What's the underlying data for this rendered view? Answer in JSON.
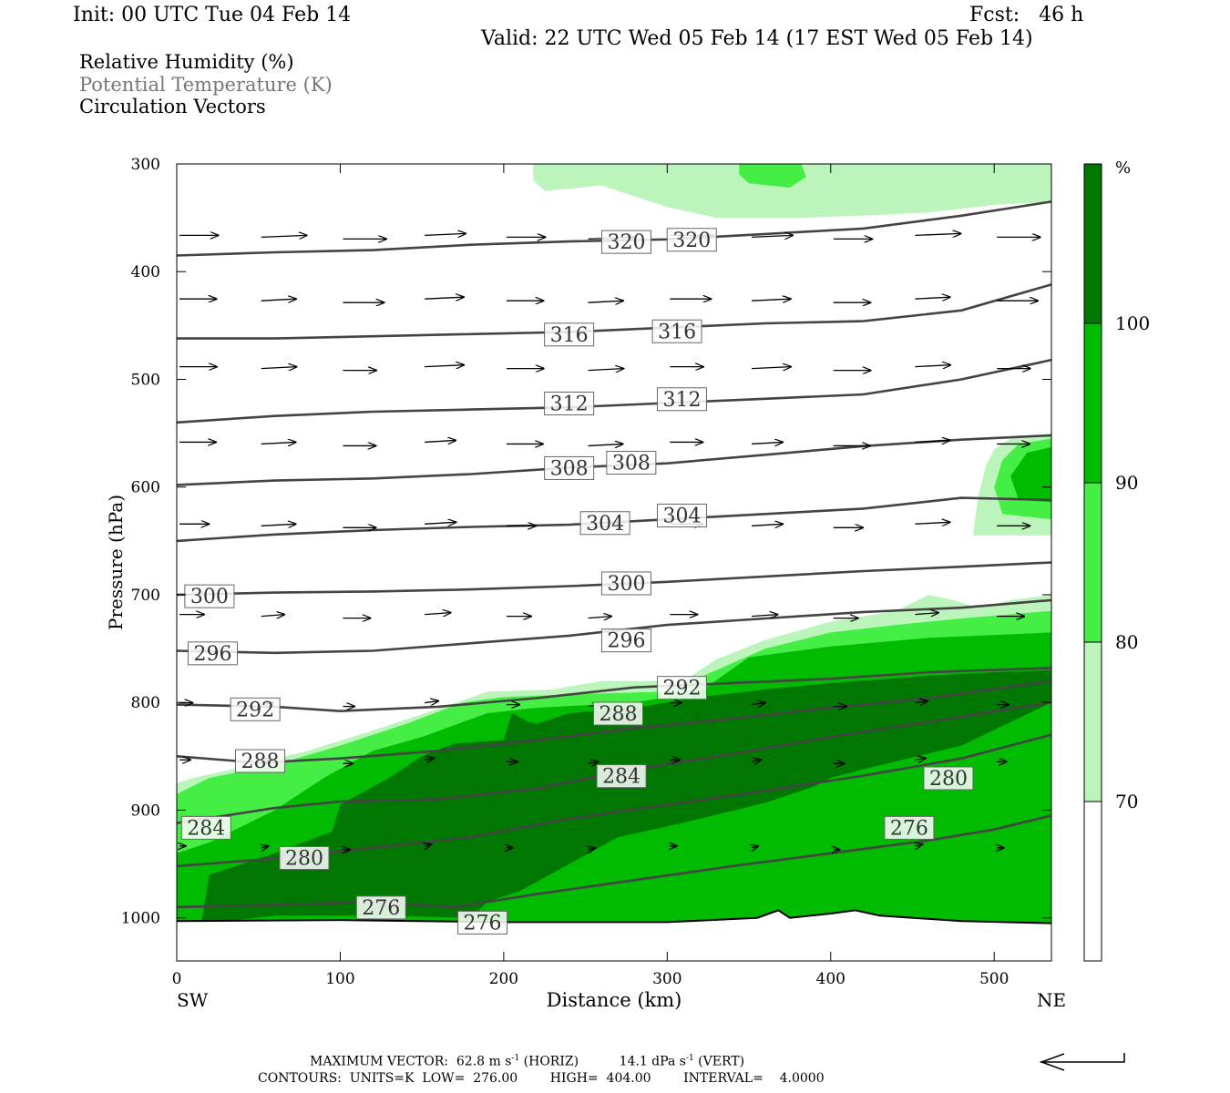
{
  "header": {
    "init": "Init: 00 UTC Tue 04 Feb 14",
    "fcst": "Fcst:   46 h",
    "valid": "Valid: 22 UTC Wed 05 Feb 14 (17 EST Wed 05 Feb 14)"
  },
  "legend": {
    "line1": "Relative Humidity (%)",
    "line2": "Potential Temperature (K)",
    "line3": "Circulation Vectors"
  },
  "footer": {
    "max_vector_prefix": "MAXIMUM VECTOR:  62.8 m s",
    "max_vector_mid": " (HORIZ)          14.1 dPa s",
    "max_vector_suffix": " (VERT)",
    "superscript": "-1",
    "contours": "CONTOURS:  UNITS=K  LOW=  276.00        HIGH=  404.00        INTERVAL=    4.0000"
  },
  "colors": {
    "rh_70_80": "#bbf5bb",
    "rh_80_90": "#44ee44",
    "rh_90_100": "#00bb00",
    "rh_100": "#007700",
    "contour": "#444444"
  },
  "chart_data": {
    "type": "cross-section",
    "title": "",
    "xlabel": "Distance (km)",
    "ylabel": "Pressure (hPa)",
    "xlim": [
      0,
      535
    ],
    "ylim": [
      1040,
      300
    ],
    "x_ticks": [
      0,
      100,
      200,
      300,
      400,
      500
    ],
    "y_ticks": [
      300,
      400,
      500,
      600,
      700,
      800,
      900,
      1000
    ],
    "x_end_labels": {
      "left": "SW",
      "right": "NE"
    },
    "colorbar": {
      "unit": "%",
      "levels": [
        70,
        80,
        90,
        100
      ],
      "labels": [
        "70",
        "80",
        "90",
        "100"
      ]
    },
    "theta_contours": [
      {
        "value": 276,
        "points": [
          [
            0,
            990
          ],
          [
            60,
            988
          ],
          [
            120,
            985
          ],
          [
            170,
            990
          ],
          [
            220,
            978
          ],
          [
            280,
            965
          ],
          [
            340,
            952
          ],
          [
            400,
            940
          ],
          [
            460,
            928
          ],
          [
            500,
            918
          ],
          [
            535,
            905
          ]
        ],
        "labels": [
          {
            "x": 125,
            "p": 990,
            "text": "276"
          },
          {
            "x": 187,
            "p": 1004,
            "text": "276"
          },
          {
            "x": 448,
            "p": 916,
            "text": "276"
          }
        ]
      },
      {
        "value": 280,
        "points": [
          [
            0,
            952
          ],
          [
            60,
            945
          ],
          [
            120,
            935
          ],
          [
            180,
            925
          ],
          [
            240,
            908
          ],
          [
            300,
            895
          ],
          [
            360,
            882
          ],
          [
            420,
            868
          ],
          [
            480,
            852
          ],
          [
            535,
            830
          ]
        ],
        "labels": [
          {
            "x": 78,
            "p": 944,
            "text": "280"
          },
          {
            "x": 472,
            "p": 870,
            "text": "280"
          }
        ]
      },
      {
        "value": 284,
        "points": [
          [
            0,
            912
          ],
          [
            60,
            898
          ],
          [
            100,
            892
          ],
          [
            160,
            890
          ],
          [
            220,
            880
          ],
          [
            280,
            862
          ],
          [
            340,
            848
          ],
          [
            400,
            832
          ],
          [
            460,
            818
          ],
          [
            535,
            800
          ]
        ],
        "labels": [
          {
            "x": 18,
            "p": 916,
            "text": "284"
          },
          {
            "x": 272,
            "p": 868,
            "text": "284"
          }
        ]
      },
      {
        "value": 288,
        "points": [
          [
            0,
            850
          ],
          [
            50,
            856
          ],
          [
            100,
            852
          ],
          [
            160,
            845
          ],
          [
            220,
            835
          ],
          [
            280,
            824
          ],
          [
            340,
            815
          ],
          [
            400,
            805
          ],
          [
            460,
            796
          ],
          [
            535,
            780
          ]
        ],
        "labels": [
          {
            "x": 51,
            "p": 854,
            "text": "288"
          },
          {
            "x": 270,
            "p": 810,
            "text": "288"
          }
        ]
      },
      {
        "value": 292,
        "points": [
          [
            0,
            802
          ],
          [
            60,
            804
          ],
          [
            100,
            808
          ],
          [
            160,
            804
          ],
          [
            220,
            796
          ],
          [
            280,
            786
          ],
          [
            340,
            782
          ],
          [
            400,
            778
          ],
          [
            460,
            772
          ],
          [
            535,
            768
          ]
        ],
        "labels": [
          {
            "x": 48,
            "p": 806,
            "text": "292"
          },
          {
            "x": 309,
            "p": 786,
            "text": "292"
          }
        ]
      },
      {
        "value": 296,
        "points": [
          [
            0,
            752
          ],
          [
            60,
            754
          ],
          [
            120,
            752
          ],
          [
            180,
            745
          ],
          [
            240,
            738
          ],
          [
            300,
            728
          ],
          [
            360,
            722
          ],
          [
            420,
            716
          ],
          [
            480,
            712
          ],
          [
            535,
            705
          ]
        ],
        "labels": [
          {
            "x": 22,
            "p": 754,
            "text": "296"
          },
          {
            "x": 275,
            "p": 742,
            "text": "296"
          }
        ]
      },
      {
        "value": 300,
        "points": [
          [
            0,
            700
          ],
          [
            60,
            698
          ],
          [
            120,
            697
          ],
          [
            180,
            695
          ],
          [
            240,
            692
          ],
          [
            300,
            688
          ],
          [
            360,
            683
          ],
          [
            420,
            678
          ],
          [
            480,
            674
          ],
          [
            535,
            670
          ]
        ],
        "labels": [
          {
            "x": 20,
            "p": 701,
            "text": "300"
          },
          {
            "x": 275,
            "p": 689,
            "text": "300"
          }
        ]
      },
      {
        "value": 304,
        "points": [
          [
            0,
            650
          ],
          [
            60,
            644
          ],
          [
            120,
            640
          ],
          [
            180,
            637
          ],
          [
            240,
            635
          ],
          [
            300,
            630
          ],
          [
            360,
            625
          ],
          [
            420,
            620
          ],
          [
            480,
            610
          ],
          [
            535,
            612
          ]
        ],
        "labels": [
          {
            "x": 262,
            "p": 633,
            "text": "304"
          },
          {
            "x": 309,
            "p": 626,
            "text": "304"
          }
        ]
      },
      {
        "value": 308,
        "points": [
          [
            0,
            598
          ],
          [
            60,
            594
          ],
          [
            120,
            592
          ],
          [
            180,
            588
          ],
          [
            240,
            582
          ],
          [
            300,
            578
          ],
          [
            360,
            570
          ],
          [
            420,
            562
          ],
          [
            480,
            556
          ],
          [
            535,
            552
          ]
        ],
        "labels": [
          {
            "x": 240,
            "p": 582,
            "text": "308"
          },
          {
            "x": 278,
            "p": 577,
            "text": "308"
          }
        ]
      },
      {
        "value": 312,
        "points": [
          [
            0,
            540
          ],
          [
            60,
            534
          ],
          [
            120,
            530
          ],
          [
            180,
            528
          ],
          [
            240,
            526
          ],
          [
            300,
            522
          ],
          [
            360,
            518
          ],
          [
            420,
            514
          ],
          [
            480,
            500
          ],
          [
            535,
            482
          ]
        ],
        "labels": [
          {
            "x": 240,
            "p": 522,
            "text": "312"
          },
          {
            "x": 309,
            "p": 518,
            "text": "312"
          }
        ]
      },
      {
        "value": 316,
        "points": [
          [
            0,
            462
          ],
          [
            60,
            462
          ],
          [
            120,
            460
          ],
          [
            180,
            458
          ],
          [
            240,
            456
          ],
          [
            300,
            452
          ],
          [
            360,
            448
          ],
          [
            420,
            446
          ],
          [
            480,
            436
          ],
          [
            535,
            412
          ]
        ],
        "labels": [
          {
            "x": 240,
            "p": 458,
            "text": "316"
          },
          {
            "x": 306,
            "p": 455,
            "text": "316"
          }
        ]
      },
      {
        "value": 320,
        "points": [
          [
            0,
            385
          ],
          [
            60,
            382
          ],
          [
            120,
            380
          ],
          [
            180,
            375
          ],
          [
            240,
            372
          ],
          [
            300,
            370
          ],
          [
            360,
            365
          ],
          [
            420,
            360
          ],
          [
            480,
            348
          ],
          [
            535,
            335
          ]
        ],
        "labels": [
          {
            "x": 275,
            "p": 372,
            "text": "320"
          },
          {
            "x": 315,
            "p": 370,
            "text": "320"
          }
        ]
      }
    ],
    "vector_rows": [
      {
        "p": 368,
        "dx": 50,
        "dy": 0
      },
      {
        "p": 427,
        "dx": 45,
        "dy": 0
      },
      {
        "p": 490,
        "dx": 43,
        "dy": 0
      },
      {
        "p": 560,
        "dx": 40,
        "dy": 0
      },
      {
        "p": 636,
        "dx": 38,
        "dy": 0
      },
      {
        "p": 720,
        "dx": 30,
        "dy": 0
      },
      {
        "p": 802,
        "dx": 15,
        "dy": 0
      },
      {
        "p": 855,
        "dx": 12,
        "dy": 0
      },
      {
        "p": 935,
        "dx": 8,
        "dy": 0
      }
    ]
  }
}
